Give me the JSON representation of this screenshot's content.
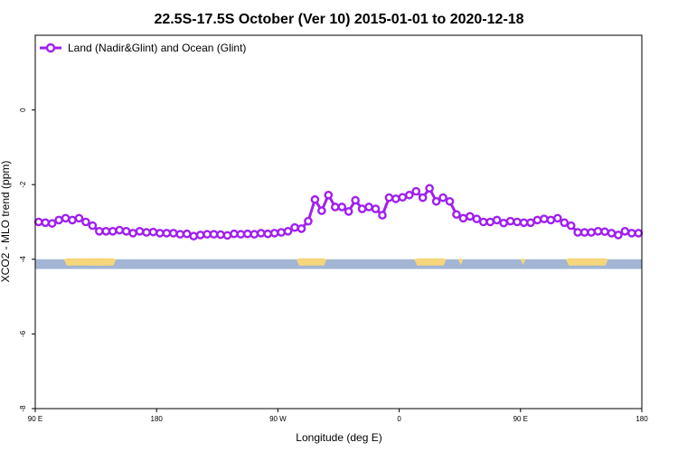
{
  "chart_data": {
    "type": "line",
    "title": "22.5S-17.5S October (Ver 10)   2015-01-01 to 2020-12-18",
    "xlabel": "Longitude (deg E)",
    "ylabel": "XCO2 - MLO trend (ppm)",
    "xlim": [
      90,
      450
    ],
    "ylim": [
      -8,
      2
    ],
    "x_ticks": [
      {
        "value": 90,
        "label": "90 E"
      },
      {
        "value": 162,
        "label": "180"
      },
      {
        "value": 234,
        "label": "90 W"
      },
      {
        "value": 306,
        "label": "0"
      },
      {
        "value": 378,
        "label": "90 E"
      },
      {
        "value": 450,
        "label": "180"
      }
    ],
    "y_ticks": [
      {
        "value": 0,
        "label": "0"
      },
      {
        "value": -2,
        "label": "-2"
      },
      {
        "value": -4,
        "label": "-4"
      },
      {
        "value": -6,
        "label": "-6"
      },
      {
        "value": -8,
        "label": "-8"
      }
    ],
    "legend": {
      "position": "top-left"
    },
    "series": [
      {
        "name": "Land (Nadir&Glint) and Ocean (Glint)",
        "color": "#a020f0",
        "x": [
          92,
          96,
          100,
          104,
          108,
          112,
          116,
          120,
          124,
          128,
          132,
          136,
          140,
          144,
          148,
          152,
          156,
          160,
          164,
          168,
          172,
          176,
          180,
          184,
          188,
          192,
          196,
          200,
          204,
          208,
          212,
          216,
          220,
          224,
          228,
          232,
          236,
          240,
          244,
          248,
          252,
          256,
          260,
          264,
          268,
          272,
          276,
          280,
          284,
          288,
          292,
          296,
          300,
          304,
          308,
          312,
          316,
          320,
          324,
          328,
          332,
          336,
          340,
          344,
          348,
          352,
          356,
          360,
          364,
          368,
          372,
          376,
          380,
          384,
          388,
          392,
          396,
          400,
          404,
          408,
          412,
          416,
          420,
          424,
          428,
          432,
          436,
          440,
          444,
          448
        ],
        "y": [
          -3.0,
          -3.02,
          -3.04,
          -2.95,
          -2.9,
          -2.95,
          -2.9,
          -3.0,
          -3.1,
          -3.25,
          -3.25,
          -3.25,
          -3.22,
          -3.25,
          -3.3,
          -3.25,
          -3.28,
          -3.27,
          -3.3,
          -3.3,
          -3.3,
          -3.33,
          -3.32,
          -3.38,
          -3.35,
          -3.33,
          -3.33,
          -3.34,
          -3.36,
          -3.32,
          -3.33,
          -3.32,
          -3.33,
          -3.3,
          -3.32,
          -3.3,
          -3.28,
          -3.25,
          -3.15,
          -3.18,
          -2.98,
          -2.4,
          -2.7,
          -2.28,
          -2.6,
          -2.6,
          -2.72,
          -2.42,
          -2.65,
          -2.6,
          -2.65,
          -2.82,
          -2.35,
          -2.38,
          -2.34,
          -2.28,
          -2.18,
          -2.35,
          -2.1,
          -2.45,
          -2.35,
          -2.45,
          -2.8,
          -2.9,
          -2.85,
          -2.92,
          -3.0,
          -3.0,
          -2.95,
          -3.03,
          -2.98,
          -3.0,
          -3.02,
          -3.02,
          -2.95,
          -2.92,
          -2.95,
          -2.9,
          -3.02,
          -3.1,
          -3.28,
          -3.28,
          -3.28,
          -3.25,
          -3.26,
          -3.3,
          -3.35,
          -3.25,
          -3.3,
          -3.3
        ]
      }
    ],
    "surface_band": {
      "y_top": -4.0,
      "y_bottom": -4.26,
      "ocean_color": "#a2b5d4",
      "land_color": "#f6d67a",
      "land_spans": [
        [
          107,
          134
        ],
        [
          121,
          138
        ],
        [
          245,
          263
        ],
        [
          315,
          334
        ],
        [
          341,
          344
        ],
        [
          378,
          381
        ],
        [
          405,
          430
        ]
      ]
    }
  }
}
